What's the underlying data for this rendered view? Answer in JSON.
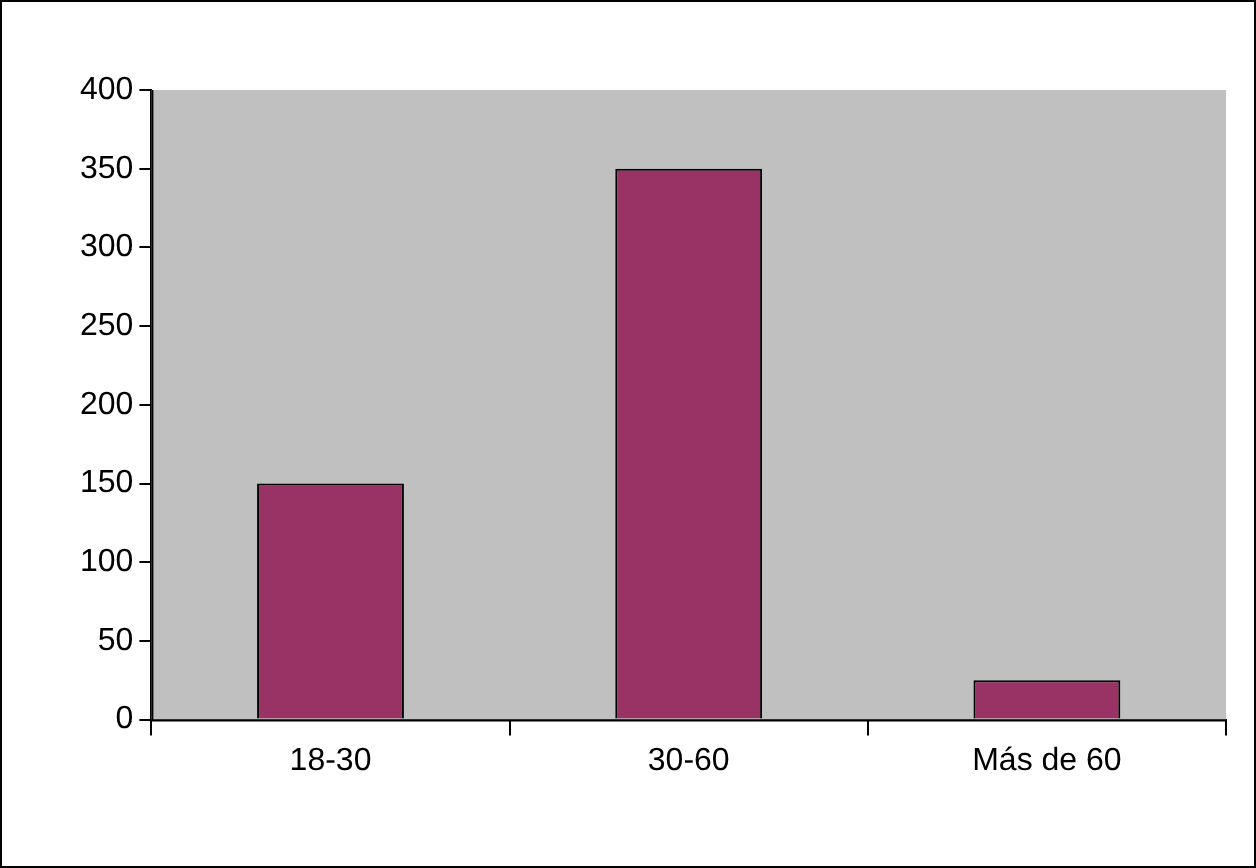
{
  "chart_data": {
    "type": "bar",
    "categories": [
      "18-30",
      "30-60",
      "Más de 60"
    ],
    "values": [
      150,
      350,
      25
    ],
    "color": "#993366",
    "ylim": [
      0,
      400
    ],
    "yticks": [
      0,
      50,
      100,
      150,
      200,
      250,
      300,
      350,
      400
    ],
    "grid": false,
    "legend": false
  }
}
